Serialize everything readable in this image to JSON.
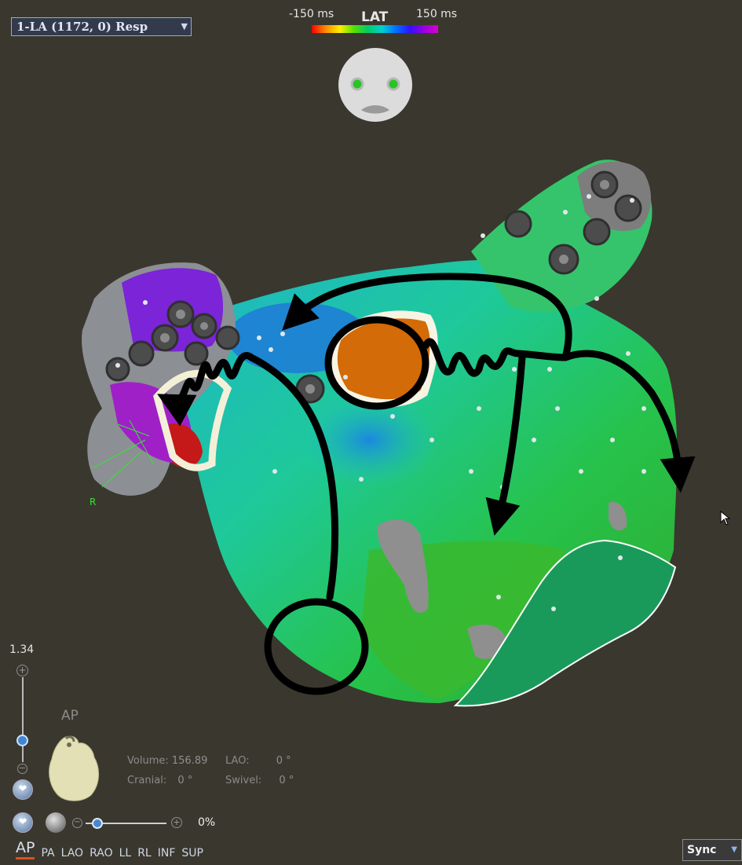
{
  "map_selector": {
    "value": "1-LA (1172, 0) Resp"
  },
  "colorbar": {
    "min_label": "-150 ms",
    "title": "LAT",
    "max_label": "150 ms"
  },
  "anatomy": {
    "marker_label": "R"
  },
  "zoom": {
    "value": "1.34"
  },
  "orientation": {
    "current_label": "AP"
  },
  "info": {
    "volume_label": "Volume:",
    "volume_value": "156.89",
    "cranial_label": "Cranial:",
    "cranial_value": "0 °",
    "lao_label": "LAO:",
    "lao_value": "0 °",
    "swivel_label": "Swivel:",
    "swivel_value": "0 °"
  },
  "opacity": {
    "value": "0%"
  },
  "views": [
    "AP",
    "PA",
    "LAO",
    "RAO",
    "LL",
    "RL",
    "INF",
    "SUP"
  ],
  "sync": {
    "label": "Sync"
  },
  "colors": {
    "background": "#38352c",
    "accent": "#d9531e",
    "slider": "#3f86d6"
  }
}
